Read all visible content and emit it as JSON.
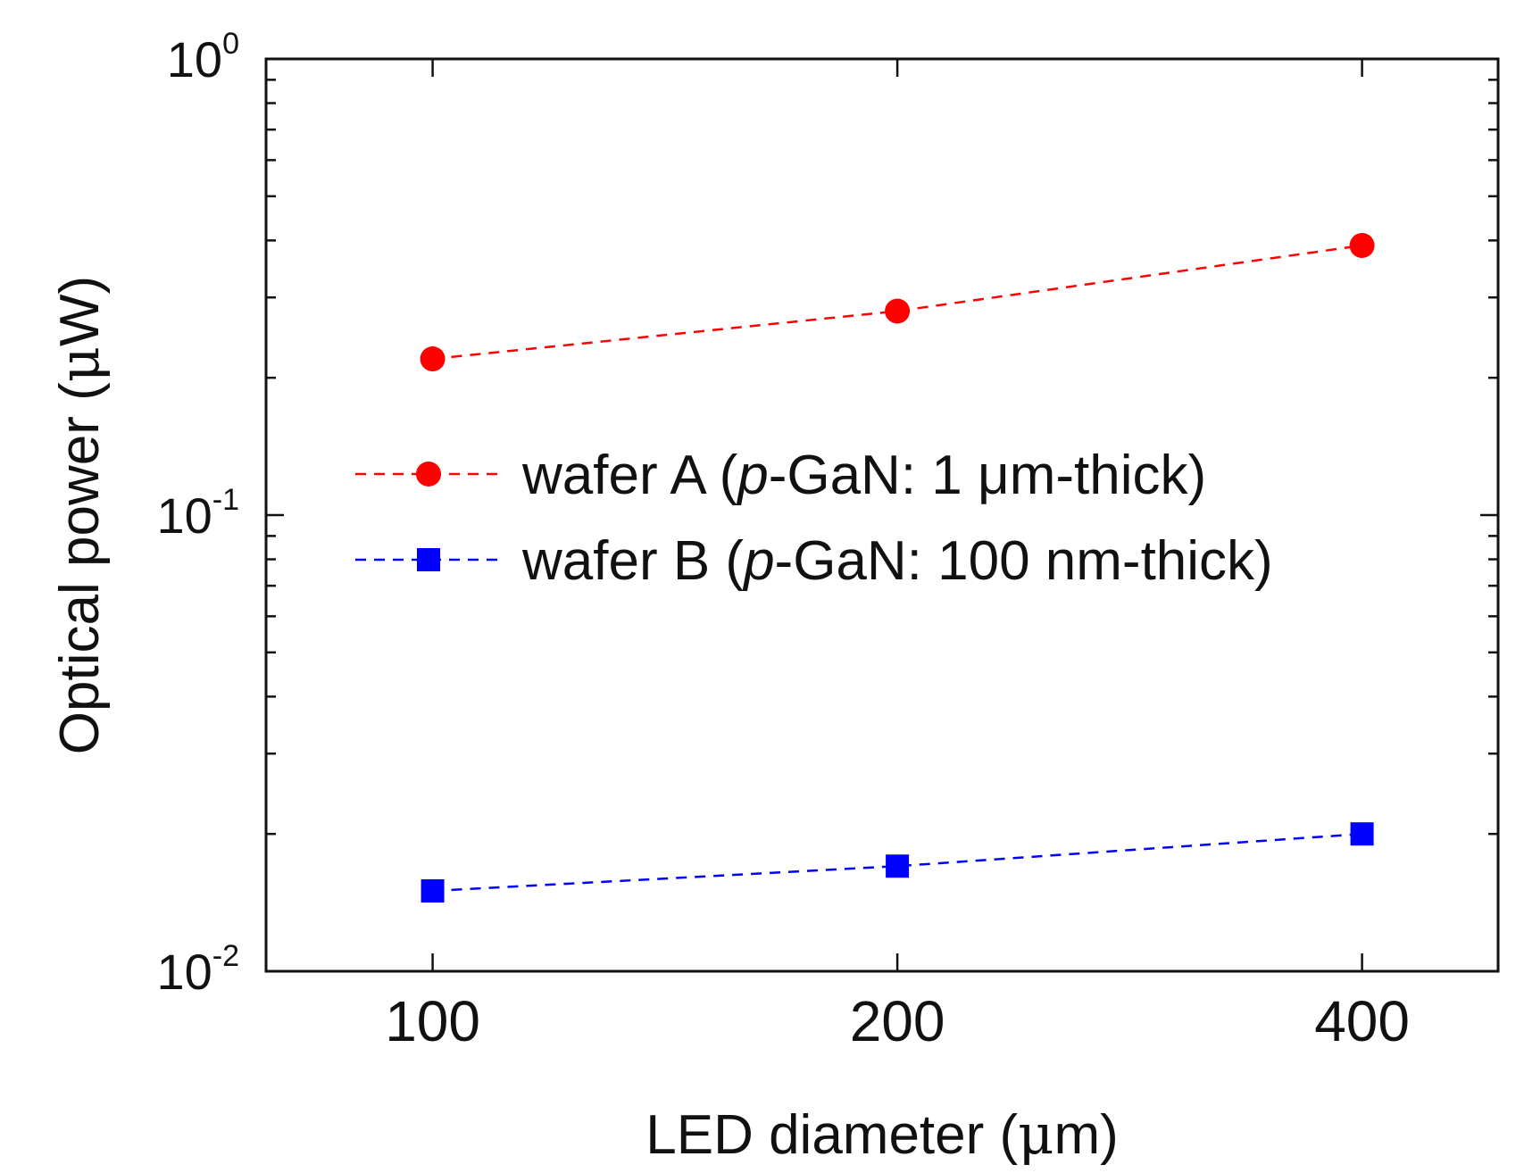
{
  "chart_data": {
    "type": "line",
    "x_scale": "log",
    "y_scale": "log",
    "xlabel_prefix": "LED diameter (",
    "xlabel_unit": "μ",
    "xlabel_suffix": "m)",
    "ylabel_prefix": "Optical power (",
    "ylabel_unit": "μ",
    "ylabel_suffix": "W)",
    "x_ticks": [
      "100",
      "200",
      "400"
    ],
    "x_tick_values": [
      100,
      200,
      400
    ],
    "xlim": [
      78,
      490
    ],
    "ylim": [
      0.01,
      1
    ],
    "y_ticks": [
      {
        "value": 1,
        "base": "10",
        "exp": "0"
      },
      {
        "value": 0.1,
        "base": "10",
        "exp": "-1"
      },
      {
        "value": 0.01,
        "base": "10",
        "exp": "-2"
      }
    ],
    "series": [
      {
        "name": "wafer A",
        "legend_pre": "wafer A (",
        "legend_italic": "p",
        "legend_post": "-GaN: 1 μm-thick)",
        "color": "#ff0000",
        "marker": "circle",
        "x": [
          100,
          200,
          400
        ],
        "values": [
          0.22,
          0.28,
          0.39
        ]
      },
      {
        "name": "wafer B",
        "legend_pre": "wafer B (",
        "legend_italic": "p",
        "legend_post": "-GaN: 100 nm-thick)",
        "color": "#0000ff",
        "marker": "square",
        "x": [
          100,
          200,
          400
        ],
        "values": [
          0.015,
          0.017,
          0.02
        ]
      }
    ],
    "legend_position": "center",
    "grid": false
  }
}
